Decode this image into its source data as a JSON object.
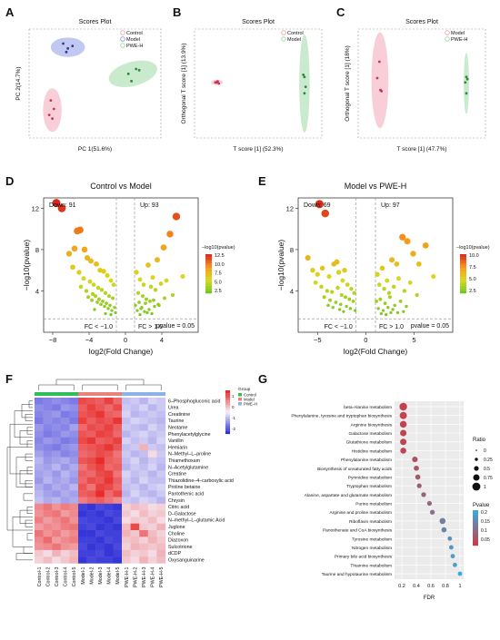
{
  "panels": {
    "A": {
      "letter": "A",
      "title": "Scores Plot",
      "xlabel": "PC 1(51.6%)",
      "ylabel": "PC 2(14.7%)",
      "legend": [
        "Control",
        "Model",
        "PWE-H"
      ]
    },
    "B": {
      "letter": "B",
      "title": "Scores Plot",
      "xlabel": "T score [1] (52.3%)",
      "ylabel": "Orthogonal T score [1] (13.9%)",
      "legend": [
        "Control",
        "Model"
      ]
    },
    "C": {
      "letter": "C",
      "title": "Scores Plot",
      "xlabel": "T score [1] (47.7%)",
      "ylabel": "Orthogonal T score [1] (18%)",
      "legend": [
        "Model",
        "PWE-H"
      ]
    },
    "D": {
      "letter": "D",
      "title": "Control vs Model",
      "xlabel": "log2(Fold Change)",
      "ylabel": "−log10(pvalue)",
      "down": "Down: 91",
      "up": "Up: 93",
      "pline": "pvalue = 0.05",
      "fcl": "FC < −1.0",
      "fcr": "FC > 1.0",
      "legend_title": "−log10(pvalue)",
      "legend_ticks": [
        "12.5",
        "10.0",
        "7.5",
        "5.0",
        "2.5"
      ],
      "xticks": [
        "−8",
        "−4",
        "0",
        "4"
      ],
      "yticks": [
        "12",
        "8",
        "4"
      ]
    },
    "E": {
      "letter": "E",
      "title": "Model vs PWE-H",
      "xlabel": "log2(Fold Change)",
      "ylabel": "−log10(pvalue)",
      "down": "Down: 69",
      "up": "Up: 97",
      "pline": "pvalue = 0.05",
      "fcl": "FC < −1.0",
      "fcr": "FC > 1.0",
      "legend_title": "−log10(pvalue)",
      "legend_ticks": [
        "10.0",
        "7.5",
        "5.0",
        "2.5"
      ],
      "xticks": [
        "−5",
        "0",
        "5"
      ],
      "yticks": [
        "12",
        "8",
        "4"
      ]
    },
    "F": {
      "letter": "F",
      "legend_title": "Group",
      "legend": [
        "Control",
        "Model",
        "PWE–H"
      ],
      "scale_ticks": [
        "1",
        "0",
        "-1",
        "-2"
      ]
    },
    "G": {
      "letter": "G",
      "xlabel": "FDR",
      "xticks": [
        "0.2",
        "0.4",
        "0.6",
        "0.8",
        "1"
      ],
      "ratio_title": "Ratio",
      "ratio_ticks": [
        "0",
        "0.25",
        "0.5",
        "0.75",
        "1"
      ],
      "pvalue_title": "Pvalue",
      "pvalue_ticks": [
        "0.2",
        "0.15",
        "0.1",
        "0.05"
      ]
    }
  },
  "colors": {
    "control": "#f2a6b8",
    "model": "#8e9ae6",
    "pwe": "#9fd9a4",
    "heat_high": "#e8211f",
    "heat_low": "#2c2cd6"
  },
  "chart_data": [
    {
      "type": "scatter",
      "panel": "A",
      "series": [
        {
          "name": "Control",
          "x": [
            -2.6,
            -2.4,
            -2.7,
            -2.5
          ],
          "y": [
            -1.4,
            -2.1,
            -2.6,
            -2.9
          ]
        },
        {
          "name": "Model",
          "x": [
            -1.8,
            -1.5,
            -1.2,
            -1.6
          ],
          "y": [
            3.3,
            2.9,
            3.1,
            2.6
          ]
        },
        {
          "name": "PWE-H",
          "x": [
            2.4,
            2.9,
            3.1,
            2.6
          ],
          "y": [
            0.8,
            1.2,
            1.1,
            0.2
          ]
        }
      ]
    },
    {
      "type": "scatter",
      "panel": "B",
      "series": [
        {
          "name": "Control",
          "x": [
            -3.2,
            -3.0,
            -2.9,
            -3.1
          ],
          "y": [
            0.1,
            0.2,
            0.0,
            0.1
          ]
        },
        {
          "name": "Model",
          "x": [
            4.4,
            4.6,
            4.5,
            4.5
          ],
          "y": [
            0.8,
            -0.3,
            0.6,
            -0.9
          ]
        }
      ]
    },
    {
      "type": "scatter",
      "panel": "C",
      "series": [
        {
          "name": "Model",
          "x": [
            -4.0,
            -4.2,
            -3.8,
            -3.9
          ],
          "y": [
            2.0,
            0.5,
            -0.7,
            -0.6
          ]
        },
        {
          "name": "PWE-H",
          "x": [
            4.2,
            4.3,
            4.1,
            4.2
          ],
          "y": [
            0.6,
            0.4,
            0.1,
            -0.9
          ]
        }
      ]
    },
    {
      "type": "scatter",
      "panel": "D",
      "title": "Control vs Model",
      "xlim": [
        -9,
        8
      ],
      "ylim": [
        0,
        13
      ],
      "x": [
        -7.6,
        -7.0,
        -5.3,
        -5.0,
        -4.5,
        -6.2,
        -5.6,
        -4.2,
        -3.8,
        -3.2,
        -2.8,
        -2.4,
        -2.0,
        -1.6,
        -1.3,
        -5.8,
        -5.1,
        -4.6,
        -3.9,
        -3.5,
        -3.0,
        -2.6,
        -2.2,
        -1.8,
        -1.4,
        -4.9,
        -4.3,
        -3.6,
        -3.3,
        -2.9,
        -2.5,
        -2.1,
        -1.7,
        -1.2,
        -4.1,
        -3.7,
        -3.1,
        -2.7,
        -2.3,
        -1.9,
        -1.5,
        -1.1,
        -3.4,
        -2.2,
        -1.6,
        1.2,
        1.6,
        2.0,
        2.5,
        3.0,
        3.5,
        4.2,
        4.9,
        5.6,
        6.3,
        1.4,
        1.9,
        2.3,
        2.8,
        3.3,
        3.9,
        4.5,
        5.2,
        1.1,
        1.5,
        1.8,
        2.2,
        2.7,
        3.1,
        3.7,
        4.3,
        1.3,
        1.7,
        2.1,
        2.6,
        3.2,
        3.6,
        2.4,
        2.9,
        1.6
      ],
      "y": [
        12.5,
        12.0,
        9.8,
        9.9,
        8.0,
        7.6,
        8.1,
        7.2,
        6.9,
        6.6,
        6.0,
        5.9,
        5.5,
        5.0,
        4.6,
        6.3,
        5.8,
        5.2,
        4.9,
        4.6,
        4.3,
        4.1,
        3.8,
        3.5,
        3.3,
        4.4,
        4.0,
        3.7,
        3.5,
        3.2,
        3.0,
        2.8,
        2.6,
        2.4,
        3.4,
        3.1,
        2.9,
        2.7,
        2.5,
        2.3,
        2.1,
        1.9,
        2.2,
        1.8,
        1.7,
        5.8,
        5.1,
        4.6,
        6.5,
        5.3,
        7.0,
        8.2,
        9.5,
        11.2,
        5.4,
        3.8,
        3.5,
        3.2,
        4.4,
        4.1,
        4.7,
        5.0,
        3.6,
        2.6,
        2.9,
        2.4,
        2.8,
        3.0,
        3.1,
        2.6,
        3.3,
        2.1,
        2.3,
        2.0,
        2.2,
        2.5,
        2.7,
        1.9,
        1.8,
        1.7
      ],
      "xlabel": "log2(Fold Change)",
      "ylabel": "−log10(pvalue)"
    },
    {
      "type": "scatter",
      "panel": "E",
      "title": "Model vs PWE-H",
      "xlim": [
        -7,
        9
      ],
      "ylim": [
        0,
        13
      ],
      "x": [
        -4.8,
        -4.2,
        -6.0,
        -3.0,
        -2.2,
        -5.5,
        -5.0,
        -4.5,
        -3.8,
        -3.3,
        -2.8,
        -2.4,
        -1.9,
        -1.5,
        -1.2,
        -5.2,
        -4.6,
        -4.0,
        -3.5,
        -2.9,
        -2.5,
        -2.1,
        -1.7,
        -1.3,
        -4.3,
        -3.7,
        -3.1,
        -2.6,
        -2.0,
        -1.6,
        -1.1,
        -3.9,
        -3.4,
        -2.7,
        -2.3,
        1.2,
        1.7,
        2.2,
        2.7,
        3.2,
        3.8,
        4.3,
        4.9,
        5.5,
        6.2,
        7.0,
        1.4,
        1.9,
        2.4,
        2.9,
        3.4,
        4.0,
        4.6,
        5.3,
        1.1,
        1.5,
        2.0,
        2.5,
        3.0,
        3.6,
        4.2,
        1.3,
        1.8,
        2.3,
        2.8,
        3.3,
        3.9,
        1.6,
        2.1,
        2.6
      ],
      "y": [
        12.4,
        11.5,
        7.2,
        6.8,
        6.0,
        6.0,
        5.6,
        6.2,
        5.4,
        6.6,
        5.8,
        5.0,
        4.6,
        4.2,
        3.8,
        4.8,
        4.4,
        4.0,
        3.9,
        4.3,
        3.6,
        3.4,
        3.2,
        3.0,
        3.4,
        3.1,
        2.9,
        2.7,
        2.5,
        2.3,
        2.1,
        2.6,
        2.4,
        2.2,
        2.0,
        5.6,
        6.2,
        5.0,
        7.0,
        6.6,
        9.2,
        8.8,
        7.6,
        6.6,
        8.4,
        5.4,
        4.6,
        4.2,
        3.8,
        4.4,
        5.2,
        4.0,
        4.8,
        3.6,
        3.0,
        3.2,
        2.8,
        3.4,
        2.6,
        3.0,
        2.5,
        2.3,
        2.1,
        2.4,
        2.2,
        1.9,
        2.0,
        1.8,
        1.7,
        1.9
      ],
      "xlabel": "log2(Fold Change)",
      "ylabel": "−log10(pvalue)"
    },
    {
      "type": "heatmap",
      "panel": "F",
      "columns": [
        "Control-1",
        "Control-2",
        "Control-3",
        "Control-4",
        "Control-5",
        "Model-1",
        "Model-2",
        "Model-3",
        "Model-4",
        "Model-5",
        "PWE-H-1",
        "PWE-H-2",
        "PWE-H-3",
        "PWE-H-4",
        "PWE-H-5"
      ],
      "rows": [
        "6–Phosphogluconic acid",
        "Urea",
        "Creatinine",
        "Taurine",
        "Neotame",
        "Phenylacetylglycine",
        "Vanillin",
        "Hemiarin",
        "N–Methyl–L–proline",
        "Thiamethoxam",
        "N–Acetylglutamine",
        "Creatine",
        "Thiazolidine–4–carboxylic acid",
        "Proline betaine",
        "Pantothenic acid",
        "Chrysin",
        "Citric acid",
        "D–Galactose",
        "N–methyl–L–glutamic Acid",
        "Juglone",
        "Choline",
        "Diazoxon",
        "Sulcotrione",
        "dCDP",
        "Oxysanguinarine"
      ],
      "values": [
        [
          -1.2,
          -1.1,
          -1.0,
          -1.1,
          -1.2,
          1.6,
          1.5,
          1.4,
          1.7,
          1.3,
          -0.5,
          -0.4,
          -0.6,
          -0.3,
          -0.4
        ],
        [
          -1.0,
          -1.1,
          -1.2,
          -0.9,
          -1.0,
          1.4,
          1.7,
          1.5,
          1.3,
          1.6,
          -0.4,
          -0.5,
          -0.3,
          -0.6,
          -0.4
        ],
        [
          -1.1,
          -1.0,
          -0.9,
          -1.2,
          -1.1,
          1.5,
          1.6,
          1.8,
          1.4,
          1.3,
          -0.3,
          -0.6,
          -0.5,
          -0.4,
          -0.5
        ],
        [
          -1.2,
          -1.0,
          -1.1,
          -1.0,
          -1.2,
          1.7,
          1.4,
          1.6,
          1.5,
          1.8,
          -0.5,
          -0.3,
          -0.4,
          -0.5,
          -0.6
        ],
        [
          -0.9,
          -1.1,
          -1.0,
          -1.1,
          -0.8,
          1.3,
          1.6,
          1.5,
          1.7,
          1.4,
          -0.4,
          -0.5,
          -0.6,
          -0.3,
          -0.5
        ],
        [
          -1.0,
          -1.2,
          -1.1,
          -0.9,
          -1.0,
          1.5,
          1.4,
          1.7,
          1.6,
          1.3,
          -0.6,
          -0.4,
          -0.3,
          -0.5,
          -0.4
        ],
        [
          -1.1,
          -0.9,
          -1.0,
          -1.2,
          -1.1,
          1.6,
          1.8,
          1.4,
          1.5,
          1.7,
          -0.3,
          -0.5,
          -0.4,
          -0.6,
          -0.3
        ],
        [
          -1.0,
          -1.1,
          -1.2,
          -1.0,
          -0.9,
          1.4,
          1.5,
          1.6,
          1.8,
          1.5,
          -0.5,
          -0.4,
          0.6,
          -0.4,
          -0.5
        ],
        [
          -0.8,
          -1.0,
          -0.9,
          -1.1,
          -1.0,
          1.3,
          1.4,
          1.6,
          1.5,
          1.2,
          -0.4,
          -0.6,
          -0.5,
          0.2,
          -0.4
        ],
        [
          -0.6,
          -0.9,
          -0.8,
          -0.7,
          -0.9,
          1.5,
          1.6,
          1.9,
          1.4,
          1.3,
          -0.5,
          -0.3,
          -0.6,
          -0.4,
          -0.5
        ],
        [
          -0.7,
          -0.8,
          -0.6,
          -0.9,
          -0.7,
          1.2,
          1.5,
          1.7,
          1.3,
          1.4,
          -0.6,
          -0.4,
          -0.5,
          -0.3,
          -0.6
        ],
        [
          -0.8,
          -0.7,
          -0.9,
          -0.6,
          -0.8,
          1.4,
          1.3,
          1.6,
          1.7,
          1.2,
          -0.3,
          -0.5,
          -0.4,
          -0.6,
          -0.4
        ],
        [
          -0.9,
          -0.6,
          -0.8,
          -0.7,
          -0.9,
          1.3,
          1.6,
          1.5,
          1.8,
          1.4,
          -0.4,
          -0.6,
          -0.3,
          -0.5,
          -0.5
        ],
        [
          -0.7,
          -0.9,
          -0.7,
          -0.8,
          -0.6,
          1.5,
          1.2,
          1.7,
          1.6,
          1.3,
          -0.5,
          -0.4,
          -0.6,
          -0.4,
          -0.3
        ],
        [
          -0.6,
          -0.8,
          -0.9,
          -0.7,
          -0.8,
          1.4,
          1.5,
          1.9,
          1.3,
          1.6,
          -0.6,
          -0.3,
          -0.5,
          -0.6,
          -0.4
        ],
        [
          -0.5,
          -0.7,
          -0.6,
          -0.8,
          -0.7,
          1.1,
          1.3,
          1.4,
          1.2,
          1.0,
          -0.4,
          -0.5,
          -0.3,
          -0.4,
          -0.6
        ],
        [
          1.0,
          1.2,
          0.9,
          1.1,
          1.0,
          -1.8,
          -1.9,
          -1.7,
          -1.8,
          -1.9,
          0.3,
          0.5,
          0.4,
          0.2,
          0.3
        ],
        [
          0.9,
          1.1,
          1.2,
          0.8,
          1.0,
          -1.9,
          -1.8,
          -1.9,
          -1.7,
          -1.8,
          0.4,
          0.2,
          0.5,
          0.3,
          0.4
        ],
        [
          1.1,
          0.8,
          1.0,
          1.2,
          0.9,
          -1.7,
          -1.8,
          -1.8,
          -1.9,
          -1.7,
          0.2,
          0.4,
          0.3,
          0.5,
          0.2
        ],
        [
          0.8,
          1.0,
          0.9,
          1.1,
          1.2,
          -1.8,
          -1.7,
          -1.9,
          -1.8,
          -1.9,
          0.5,
          1.6,
          0.4,
          0.3,
          0.6
        ],
        [
          1.2,
          0.9,
          1.1,
          0.8,
          1.0,
          -1.9,
          -1.9,
          -1.7,
          -1.8,
          -1.8,
          0.6,
          0.4,
          1.2,
          0.5,
          0.3
        ],
        [
          1.0,
          1.3,
          0.8,
          1.0,
          1.1,
          -1.8,
          -1.8,
          -1.9,
          -1.7,
          -1.8,
          0.4,
          0.5,
          0.3,
          0.6,
          0.4
        ],
        [
          0.9,
          1.0,
          1.2,
          0.9,
          0.8,
          -1.7,
          -1.9,
          -1.8,
          -1.9,
          -1.7,
          0.3,
          0.6,
          0.5,
          0.4,
          0.5
        ],
        [
          0.4,
          0.2,
          0.6,
          0.3,
          0.5,
          -1.8,
          -1.8,
          -1.7,
          -1.9,
          -1.8,
          0.5,
          0.3,
          0.4,
          0.2,
          0.6
        ],
        [
          0.3,
          0.5,
          0.2,
          0.4,
          0.6,
          -1.9,
          -1.7,
          -1.8,
          -1.8,
          -1.9,
          0.4,
          0.2,
          0.6,
          0.3,
          0.5
        ]
      ],
      "zlim": [
        -2,
        2
      ]
    },
    {
      "type": "scatter",
      "panel": "G",
      "xlabel": "FDR",
      "xlim": [
        0.1,
        1.05
      ],
      "categories": [
        "beta-Alanine metabolism",
        "Phenylalanine, tyrosine and tryptophan biosynthesis",
        "Arginine biosynthesis",
        "Galactose metabolism",
        "Glutathione metabolism",
        "Histidine metabolism",
        "Phenylalanine metabolism",
        "Biosynthesis of unsaturated fatty acids",
        "Pyrimidine metabolism",
        "Tryptophan metabolism",
        "Alanine, aspartate and glutamate metabolism",
        "Purine metabolism",
        "Arginine and proline metabolism",
        "Riboflavin metabolism",
        "Pantothenate and CoA biosynthesis",
        "Tyrosine metabolism",
        "Nitrogen metabolism",
        "Primary bile acid biosynthesis",
        "Thiamine metabolism",
        "Taurine and hypotaurine metabolism"
      ],
      "fdr": [
        0.22,
        0.22,
        0.22,
        0.22,
        0.22,
        0.22,
        0.38,
        0.4,
        0.42,
        0.44,
        0.5,
        0.58,
        0.62,
        0.76,
        0.78,
        0.86,
        0.88,
        0.9,
        0.93,
        1.0
      ],
      "ratio": [
        0.6,
        0.55,
        0.5,
        0.45,
        0.45,
        0.4,
        0.35,
        0.3,
        0.3,
        0.25,
        0.25,
        0.25,
        0.25,
        0.4,
        0.3,
        0.2,
        0.2,
        0.2,
        0.2,
        0.2
      ],
      "pvalue": [
        0.01,
        0.012,
        0.015,
        0.016,
        0.018,
        0.02,
        0.04,
        0.045,
        0.05,
        0.06,
        0.07,
        0.08,
        0.09,
        0.12,
        0.13,
        0.15,
        0.16,
        0.17,
        0.18,
        0.2
      ]
    }
  ]
}
